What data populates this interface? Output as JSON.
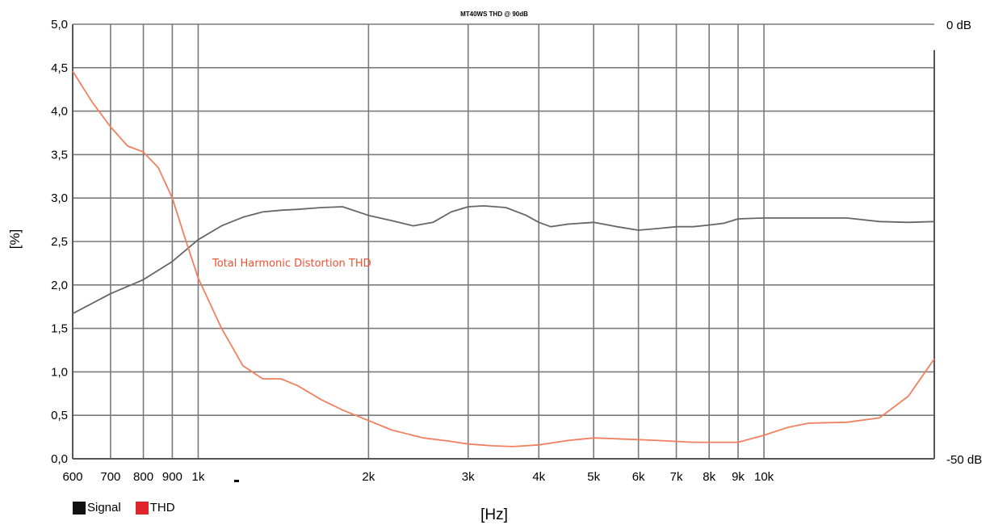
{
  "chart_data": {
    "type": "line",
    "title": "MT40WS THD @ 90dB",
    "xlabel": "[Hz]",
    "ylabel": "[%]",
    "xscale": "log",
    "xlim": [
      600,
      20000
    ],
    "ylim": [
      0,
      5
    ],
    "y_ticks": [
      "0,0",
      "0,5",
      "1,0",
      "1,5",
      "2,0",
      "2,5",
      "3,0",
      "3,5",
      "4,0",
      "4,5",
      "5,0"
    ],
    "y2_ticks": [
      "0 dB",
      "-50 dB"
    ],
    "x_ticks": [
      {
        "v": 600,
        "label": "600"
      },
      {
        "v": 700,
        "label": "700"
      },
      {
        "v": 800,
        "label": "800"
      },
      {
        "v": 900,
        "label": "900"
      },
      {
        "v": 1000,
        "label": "1k"
      },
      {
        "v": 2000,
        "label": "2k"
      },
      {
        "v": 3000,
        "label": "3k"
      },
      {
        "v": 4000,
        "label": "4k"
      },
      {
        "v": 5000,
        "label": "5k"
      },
      {
        "v": 6000,
        "label": "6k"
      },
      {
        "v": 7000,
        "label": "7k"
      },
      {
        "v": 8000,
        "label": "8k"
      },
      {
        "v": 9000,
        "label": "9k"
      },
      {
        "v": 10000,
        "label": "10k"
      }
    ],
    "grid": true,
    "legend_position": "bottom-left",
    "annotation": "Total Harmonic Distortion THD",
    "series": [
      {
        "name": "Signal",
        "color": "#666666",
        "x": [
          600,
          700,
          800,
          900,
          1000,
          1100,
          1200,
          1300,
          1400,
          1500,
          1650,
          1800,
          2000,
          2200,
          2400,
          2600,
          2800,
          3000,
          3200,
          3500,
          3800,
          4000,
          4200,
          4500,
          5000,
          5500,
          6000,
          6500,
          7000,
          7500,
          8000,
          8500,
          9000,
          10000,
          12000,
          14000,
          16000,
          18000,
          20000
        ],
        "values": [
          1.67,
          1.9,
          2.06,
          2.27,
          2.52,
          2.68,
          2.78,
          2.84,
          2.86,
          2.87,
          2.89,
          2.9,
          2.8,
          2.74,
          2.68,
          2.72,
          2.84,
          2.9,
          2.91,
          2.89,
          2.8,
          2.72,
          2.67,
          2.7,
          2.72,
          2.67,
          2.63,
          2.65,
          2.67,
          2.67,
          2.69,
          2.71,
          2.76,
          2.77,
          2.77,
          2.77,
          2.73,
          2.72,
          2.73
        ]
      },
      {
        "name": "THD",
        "color": "#f08060",
        "x": [
          600,
          650,
          700,
          750,
          800,
          850,
          900,
          950,
          1000,
          1100,
          1200,
          1300,
          1400,
          1500,
          1650,
          1800,
          2000,
          2200,
          2500,
          2800,
          3000,
          3300,
          3600,
          4000,
          4500,
          5000,
          5500,
          6000,
          6500,
          7000,
          7500,
          8000,
          8500,
          9000,
          10000,
          11000,
          12000,
          14000,
          16000,
          18000,
          20000
        ],
        "values": [
          4.46,
          4.1,
          3.82,
          3.6,
          3.53,
          3.35,
          3.0,
          2.52,
          2.08,
          1.5,
          1.07,
          0.92,
          0.92,
          0.84,
          0.68,
          0.56,
          0.44,
          0.33,
          0.24,
          0.2,
          0.17,
          0.15,
          0.14,
          0.16,
          0.21,
          0.24,
          0.23,
          0.22,
          0.21,
          0.2,
          0.19,
          0.19,
          0.19,
          0.19,
          0.27,
          0.36,
          0.41,
          0.42,
          0.47,
          0.72,
          1.15
        ]
      }
    ]
  }
}
